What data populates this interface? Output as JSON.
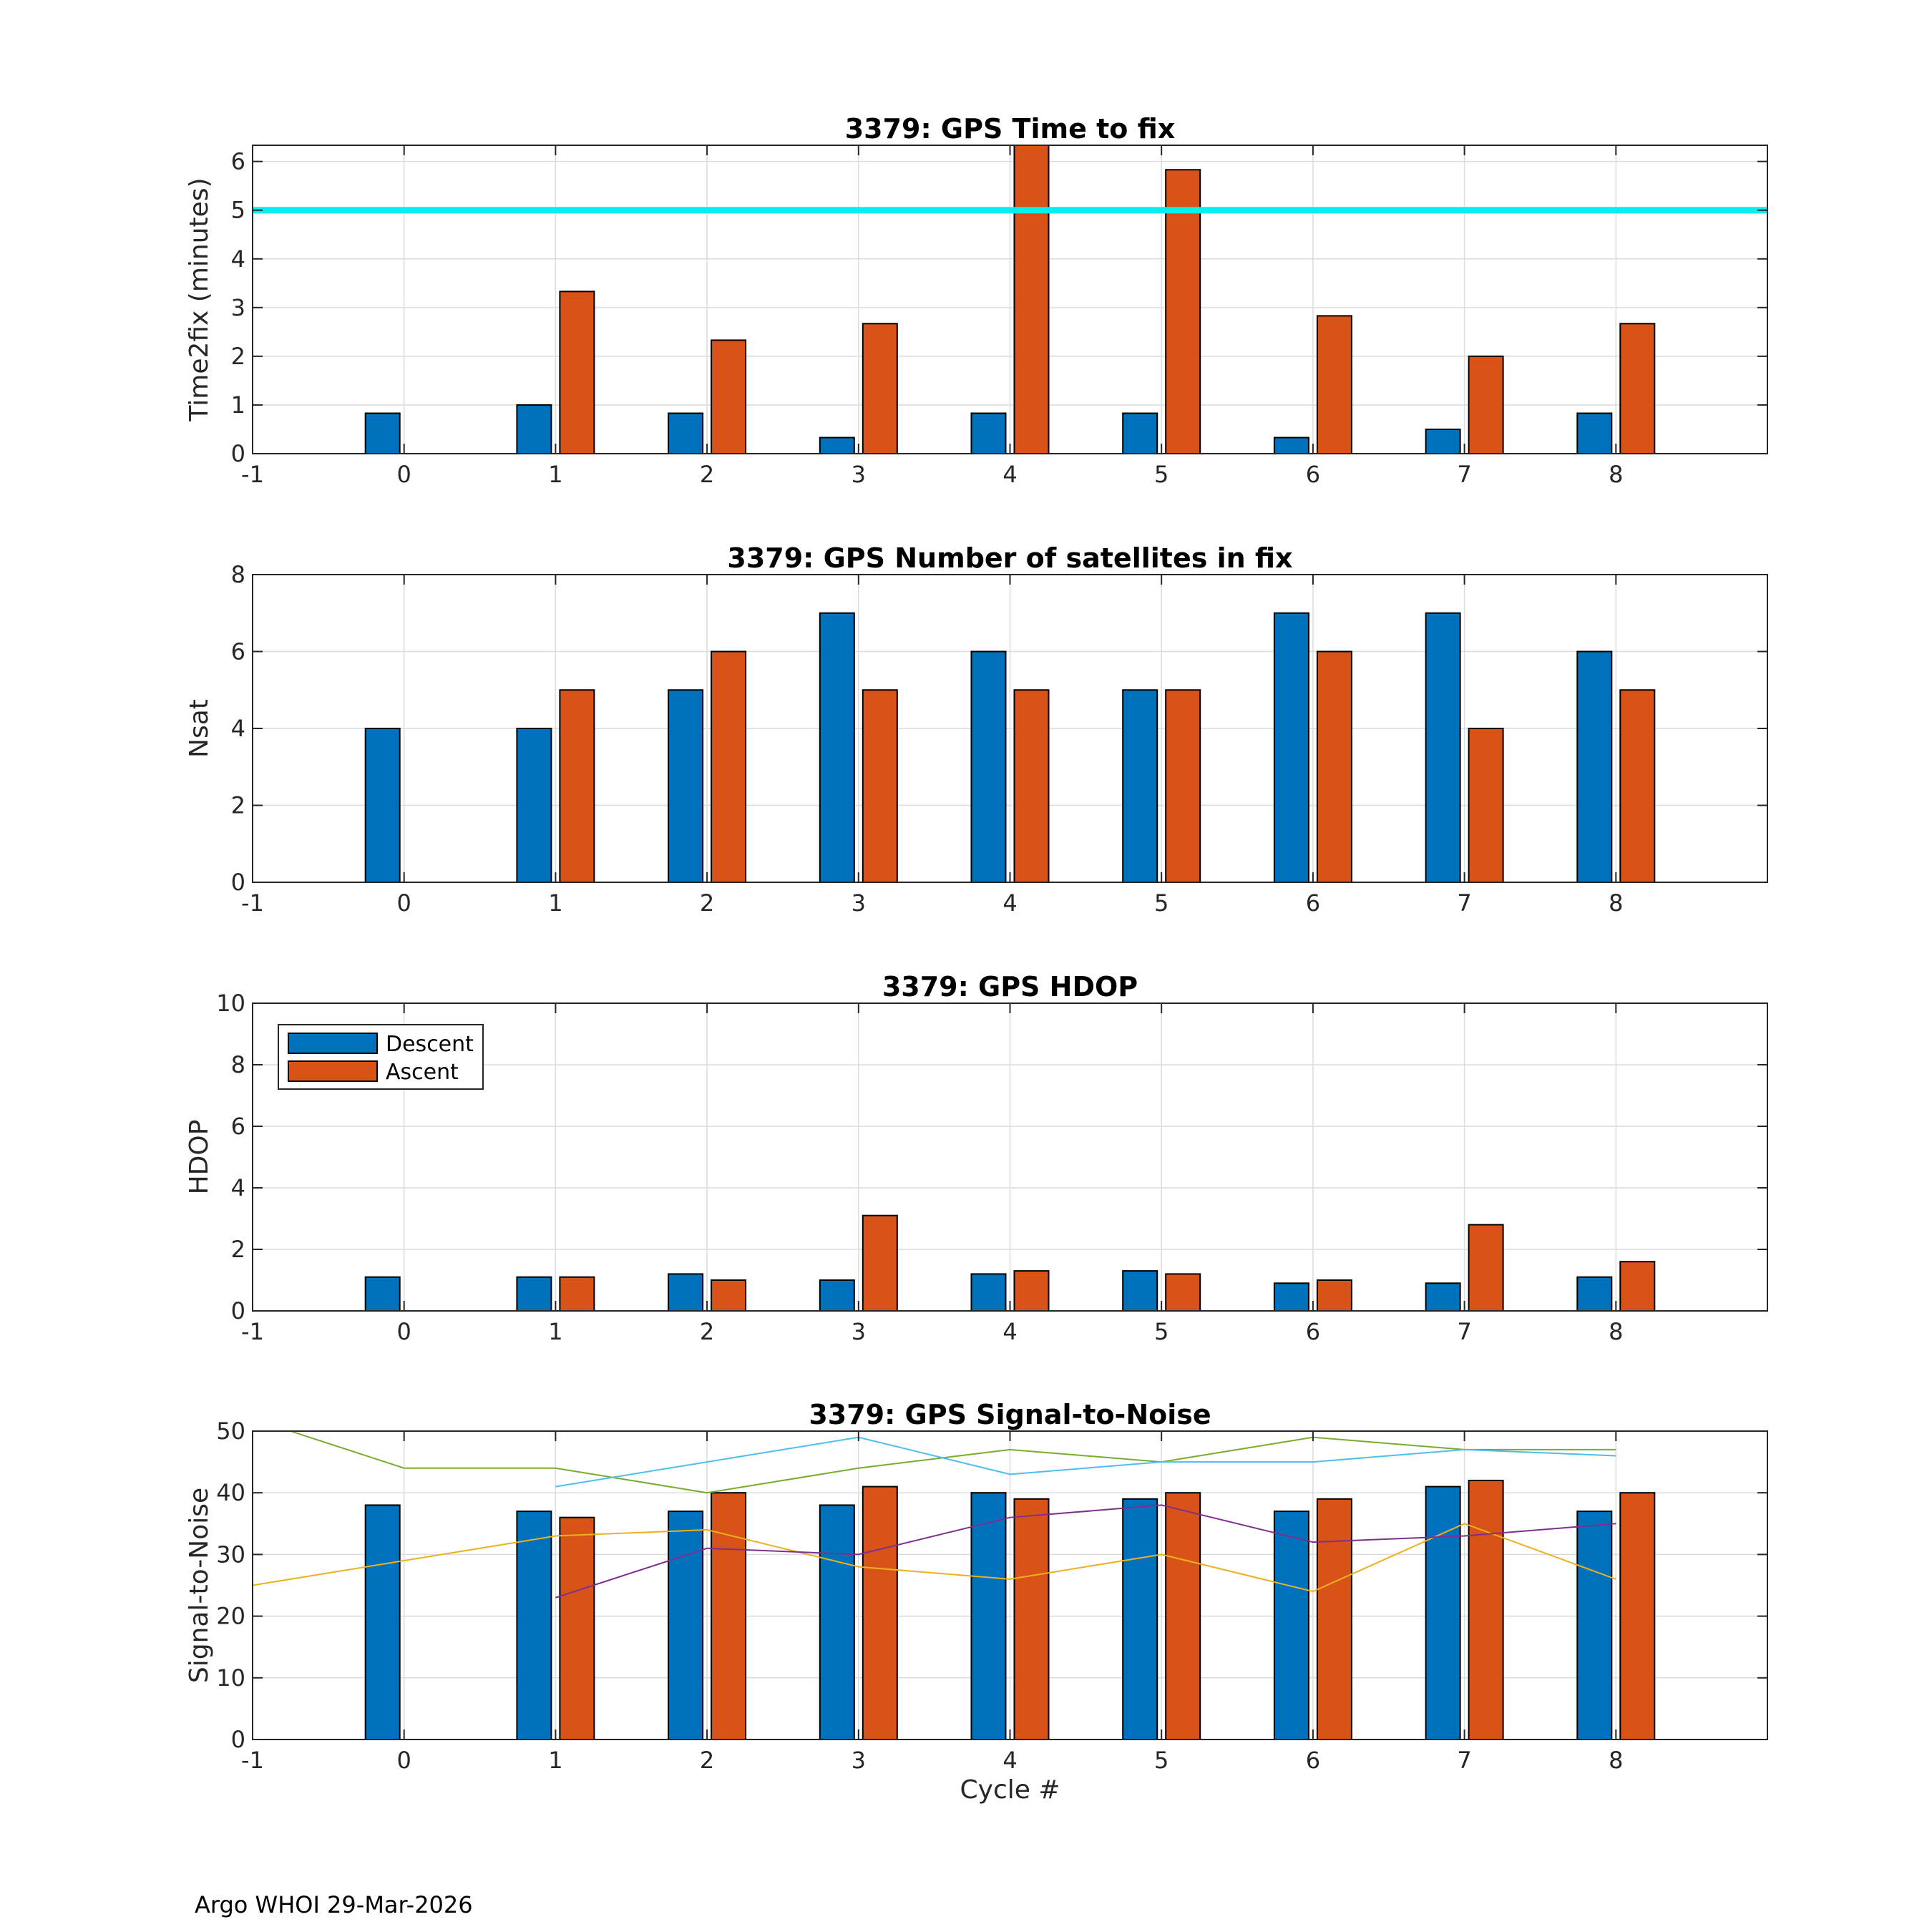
{
  "footer": "Argo WHOI 29-Mar-2026",
  "colors": {
    "descent": "#0072BD",
    "ascent": "#D95319",
    "threshold": "#00F0F0",
    "snr_lines": [
      "#77AC30",
      "#4DBEEE",
      "#EDB120",
      "#7E2F8E"
    ]
  },
  "chart_data": [
    {
      "type": "bar",
      "title": "3379: GPS Time to fix",
      "xlabel": "",
      "ylabel": "Time2fix (minutes)",
      "xlim": [
        -1,
        9
      ],
      "ylim": [
        0,
        6.333
      ],
      "xticks": [
        "-1",
        "0",
        "1",
        "2",
        "3",
        "4",
        "5",
        "6",
        "7",
        "8"
      ],
      "yticks": [
        "0",
        "1",
        "2",
        "3",
        "4",
        "5",
        "6"
      ],
      "categories": [
        0,
        1,
        2,
        3,
        4,
        5,
        6,
        7,
        8
      ],
      "series": [
        {
          "name": "Descent",
          "values": [
            0.83,
            1.0,
            0.83,
            0.33,
            0.83,
            0.83,
            0.33,
            0.5,
            0.83
          ]
        },
        {
          "name": "Ascent",
          "values": [
            0,
            3.33,
            2.33,
            2.67,
            6.5,
            5.83,
            2.83,
            2.0,
            2.67
          ]
        }
      ],
      "reference_line": {
        "y": 5
      },
      "grid": true
    },
    {
      "type": "bar",
      "title": "3379: GPS Number of satellites in fix",
      "xlabel": "",
      "ylabel": "Nsat",
      "xlim": [
        -1,
        9
      ],
      "ylim": [
        0,
        8
      ],
      "xticks": [
        "-1",
        "0",
        "1",
        "2",
        "3",
        "4",
        "5",
        "6",
        "7",
        "8"
      ],
      "yticks": [
        "0",
        "2",
        "4",
        "6",
        "8"
      ],
      "categories": [
        0,
        1,
        2,
        3,
        4,
        5,
        6,
        7,
        8
      ],
      "series": [
        {
          "name": "Descent",
          "values": [
            4,
            4,
            5,
            7,
            6,
            5,
            7,
            7,
            6
          ]
        },
        {
          "name": "Ascent",
          "values": [
            0,
            5,
            6,
            5,
            5,
            5,
            6,
            4,
            5
          ]
        }
      ],
      "grid": true
    },
    {
      "type": "bar",
      "title": "3379: GPS HDOP",
      "xlabel": "",
      "ylabel": "HDOP",
      "xlim": [
        -1,
        9
      ],
      "ylim": [
        0,
        10
      ],
      "xticks": [
        "-1",
        "0",
        "1",
        "2",
        "3",
        "4",
        "5",
        "6",
        "7",
        "8"
      ],
      "yticks": [
        "0",
        "2",
        "4",
        "6",
        "8",
        "10"
      ],
      "categories": [
        0,
        1,
        2,
        3,
        4,
        5,
        6,
        7,
        8
      ],
      "series": [
        {
          "name": "Descent",
          "values": [
            1.1,
            1.1,
            1.2,
            1.0,
            1.2,
            1.3,
            0.9,
            0.9,
            1.1
          ]
        },
        {
          "name": "Ascent",
          "values": [
            0,
            1.1,
            1.0,
            3.1,
            1.3,
            1.2,
            1.0,
            2.8,
            1.6
          ]
        }
      ],
      "legend": {
        "entries": [
          "Descent",
          "Ascent"
        ],
        "location": "top-left"
      },
      "grid": true
    },
    {
      "type": "bar",
      "title": "3379: GPS Signal-to-Noise",
      "xlabel": "Cycle #",
      "ylabel": "Signal-to-Noise",
      "xlim": [
        -1,
        9
      ],
      "ylim": [
        0,
        50
      ],
      "xticks": [
        "-1",
        "0",
        "1",
        "2",
        "3",
        "4",
        "5",
        "6",
        "7",
        "8"
      ],
      "yticks": [
        "0",
        "10",
        "20",
        "30",
        "40",
        "50"
      ],
      "categories": [
        0,
        1,
        2,
        3,
        4,
        5,
        6,
        7,
        8
      ],
      "series": [
        {
          "name": "Descent",
          "values": [
            38,
            37,
            37,
            38,
            40,
            39,
            37,
            41,
            37
          ]
        },
        {
          "name": "Ascent",
          "values": [
            0,
            36,
            40,
            41,
            39,
            40,
            39,
            42,
            40
          ]
        }
      ],
      "lines": [
        {
          "x": [
            -1,
            0,
            1,
            2,
            3,
            4,
            5,
            6,
            7,
            8
          ],
          "y": [
            52,
            44,
            44,
            40,
            44,
            47,
            45,
            49,
            47,
            47
          ]
        },
        {
          "x": [
            1,
            2,
            3,
            4,
            5,
            6,
            7,
            8
          ],
          "y": [
            41,
            45,
            49,
            43,
            45,
            45,
            47,
            46
          ]
        },
        {
          "x": [
            -1,
            0,
            1,
            2,
            3,
            4,
            5,
            6,
            7,
            8
          ],
          "y": [
            25,
            29,
            33,
            34,
            28,
            26,
            30,
            24,
            35,
            26
          ]
        },
        {
          "x": [
            1,
            2,
            3,
            4,
            5,
            6,
            7,
            8
          ],
          "y": [
            23,
            31,
            30,
            36,
            38,
            32,
            33,
            35
          ]
        }
      ],
      "grid": true
    }
  ]
}
